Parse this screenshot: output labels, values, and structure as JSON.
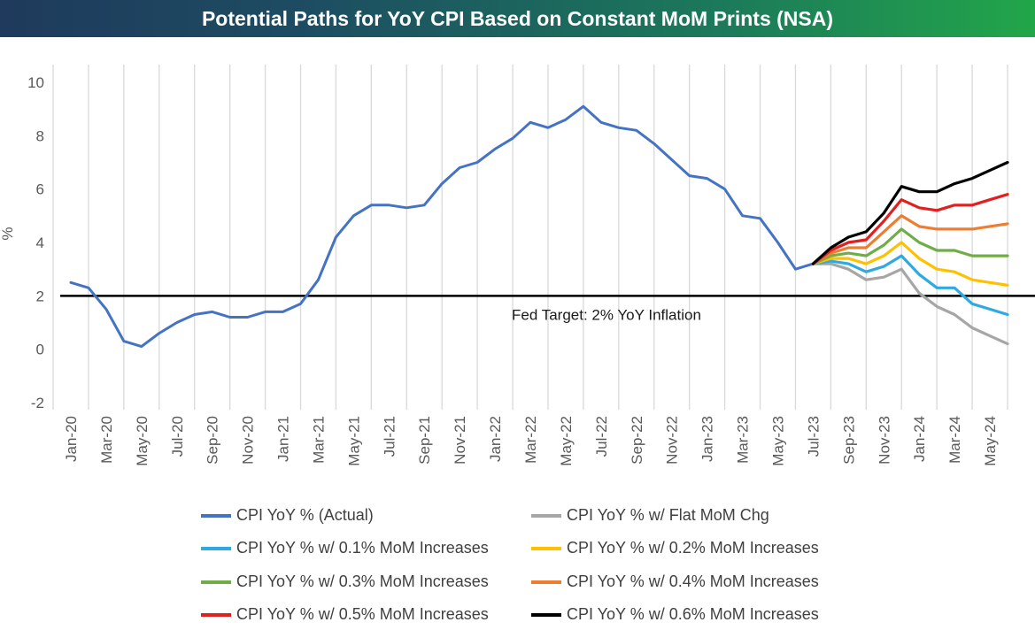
{
  "title": "Potential Paths for YoY CPI Based on Constant MoM Prints (NSA)",
  "chart_data": {
    "type": "line",
    "ylabel": "%",
    "ylim": [
      -2,
      10
    ],
    "yticks": [
      -2,
      0,
      2,
      4,
      6,
      8,
      10
    ],
    "x_tick_labels": [
      "Jan-20",
      "Mar-20",
      "May-20",
      "Jul-20",
      "Sep-20",
      "Nov-20",
      "Jan-21",
      "Mar-21",
      "May-21",
      "Jul-21",
      "Sep-21",
      "Nov-21",
      "Jan-22",
      "Mar-22",
      "May-22",
      "Jul-22",
      "Sep-22",
      "Nov-22",
      "Jan-23",
      "Mar-23",
      "May-23",
      "Jul-23",
      "Sep-23",
      "Nov-23",
      "Jan-24",
      "Mar-24",
      "May-24"
    ],
    "months": [
      "Jan-20",
      "Feb-20",
      "Mar-20",
      "Apr-20",
      "May-20",
      "Jun-20",
      "Jul-20",
      "Aug-20",
      "Sep-20",
      "Oct-20",
      "Nov-20",
      "Dec-20",
      "Jan-21",
      "Feb-21",
      "Mar-21",
      "Apr-21",
      "May-21",
      "Jun-21",
      "Jul-21",
      "Aug-21",
      "Sep-21",
      "Oct-21",
      "Nov-21",
      "Dec-21",
      "Jan-22",
      "Feb-22",
      "Mar-22",
      "Apr-22",
      "May-22",
      "Jun-22",
      "Jul-22",
      "Aug-22",
      "Sep-22",
      "Oct-22",
      "Nov-22",
      "Dec-22",
      "Jan-23",
      "Feb-23",
      "Mar-23",
      "Apr-23",
      "May-23",
      "Jun-23",
      "Jul-23",
      "Aug-23",
      "Sep-23",
      "Oct-23",
      "Nov-23",
      "Dec-23",
      "Jan-24",
      "Feb-24",
      "Mar-24",
      "Apr-24",
      "May-24",
      "Jun-24"
    ],
    "grid": "vertical",
    "reference_line": {
      "y": 2,
      "label": "Fed Target: 2% YoY Inflation"
    },
    "series": [
      {
        "name": "CPI YoY % (Actual)",
        "color": "#4472c4",
        "start": "Jan-20",
        "values": [
          2.5,
          2.3,
          1.5,
          0.3,
          0.1,
          0.6,
          1.0,
          1.3,
          1.4,
          1.2,
          1.2,
          1.4,
          1.4,
          1.7,
          2.6,
          4.2,
          5.0,
          5.4,
          5.4,
          5.3,
          5.4,
          6.2,
          6.8,
          7.0,
          7.5,
          7.9,
          8.5,
          8.3,
          8.6,
          9.1,
          8.5,
          8.3,
          8.2,
          7.7,
          7.1,
          6.5,
          6.4,
          6.0,
          5.0,
          4.9,
          4.0,
          3.0,
          3.2
        ]
      },
      {
        "name": "CPI YoY % w/ Flat MoM Chg",
        "color": "#a6a6a6",
        "start": "Jul-23",
        "values": [
          3.2,
          3.2,
          3.0,
          2.6,
          2.7,
          3.0,
          2.1,
          1.6,
          1.3,
          0.8,
          0.5,
          0.2
        ]
      },
      {
        "name": "CPI YoY % w/ 0.1% MoM Increases",
        "color": "#2eaae1",
        "start": "Jul-23",
        "values": [
          3.2,
          3.3,
          3.2,
          2.9,
          3.1,
          3.5,
          2.8,
          2.3,
          2.3,
          1.7,
          1.5,
          1.3
        ]
      },
      {
        "name": "CPI YoY % w/ 0.2% MoM Increases",
        "color": "#ffc000",
        "start": "Jul-23",
        "values": [
          3.2,
          3.4,
          3.4,
          3.2,
          3.5,
          4.0,
          3.4,
          3.0,
          2.9,
          2.6,
          2.5,
          2.4
        ]
      },
      {
        "name": "CPI YoY % w/ 0.3% MoM Increases",
        "color": "#70ad47",
        "start": "Jul-23",
        "values": [
          3.2,
          3.5,
          3.6,
          3.5,
          3.9,
          4.5,
          4.0,
          3.7,
          3.7,
          3.5,
          3.5,
          3.5
        ]
      },
      {
        "name": "CPI YoY % w/ 0.4% MoM Increases",
        "color": "#ed7d31",
        "start": "Jul-23",
        "values": [
          3.2,
          3.6,
          3.8,
          3.8,
          4.4,
          5.0,
          4.6,
          4.5,
          4.5,
          4.5,
          4.6,
          4.7
        ]
      },
      {
        "name": "CPI YoY % w/ 0.5% MoM Increases",
        "color": "#e32020",
        "start": "Jul-23",
        "values": [
          3.2,
          3.7,
          4.0,
          4.1,
          4.8,
          5.6,
          5.3,
          5.2,
          5.4,
          5.4,
          5.6,
          5.8
        ]
      },
      {
        "name": "CPI YoY % w/ 0.6% MoM Increases",
        "color": "#000000",
        "start": "Jul-23",
        "values": [
          3.2,
          3.8,
          4.2,
          4.4,
          5.1,
          6.1,
          5.9,
          5.9,
          6.2,
          6.4,
          6.7,
          7.0
        ]
      }
    ]
  }
}
